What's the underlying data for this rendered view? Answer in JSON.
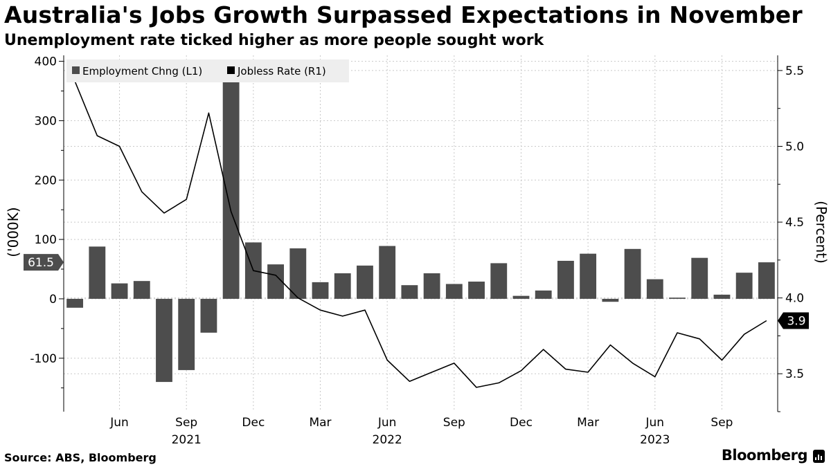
{
  "header": {
    "title": "Australia's Jobs Growth Surpassed Expectations in November",
    "subtitle": "Unemployment rate ticked higher as more people sought work"
  },
  "footer": {
    "source": "Source: ABS, Bloomberg",
    "brand": "Bloomberg"
  },
  "colors": {
    "bars": "#4d4d4d",
    "line": "#000000",
    "grid": "#c8c8c8",
    "legend_bg": "#eeeeee",
    "label_bar_bg": "#4d4d4d",
    "label_line_bg": "#000000"
  },
  "chart_data": {
    "type": "bar",
    "legend": {
      "placement": "top-left",
      "entries": [
        "Employment Chng (L1)",
        "Jobless Rate (R1)"
      ]
    },
    "grid": true,
    "left_axis": {
      "label": "('000K)",
      "range": [
        -190,
        410
      ],
      "ticks": [
        400,
        300,
        200,
        100,
        0,
        -100
      ]
    },
    "right_axis": {
      "label": "(Percent)",
      "range": [
        3.25,
        5.6
      ],
      "ticks": [
        "5.5",
        "5.0",
        "4.5",
        "4.0",
        "3.5"
      ]
    },
    "x_ticks": [
      {
        "label": "Jun",
        "index": 2
      },
      {
        "label": "Sep",
        "index": 5
      },
      {
        "label": "Dec",
        "index": 8
      },
      {
        "label": "Mar",
        "index": 11
      },
      {
        "label": "Jun",
        "index": 14
      },
      {
        "label": "Sep",
        "index": 17
      },
      {
        "label": "Dec",
        "index": 20
      },
      {
        "label": "Mar",
        "index": 23
      },
      {
        "label": "Jun",
        "index": 26
      },
      {
        "label": "Sep",
        "index": 29
      }
    ],
    "year_labels": [
      {
        "label": "2021",
        "index": 5
      },
      {
        "label": "2022",
        "index": 14
      },
      {
        "label": "2023",
        "index": 26
      }
    ],
    "categories": [
      "Apr 2021",
      "May 2021",
      "Jun 2021",
      "Jul 2021",
      "Aug 2021",
      "Sep 2021",
      "Oct 2021",
      "Nov 2021",
      "Dec 2021",
      "Jan 2022",
      "Feb 2022",
      "Mar 2022",
      "Apr 2022",
      "May 2022",
      "Jun 2022",
      "Jul 2022",
      "Aug 2022",
      "Sep 2022",
      "Oct 2022",
      "Nov 2022",
      "Dec 2022",
      "Jan 2023",
      "Feb 2023",
      "Mar 2023",
      "Apr 2023",
      "May 2023",
      "Jun 2023",
      "Jul 2023",
      "Aug 2023",
      "Sep 2023",
      "Oct 2023",
      "Nov 2023"
    ],
    "series": [
      {
        "name": "Employment Chng (L1)",
        "axis": "left",
        "kind": "bar",
        "values": [
          -15,
          88,
          26,
          30,
          -140,
          -120,
          -57,
          370,
          95,
          58,
          85,
          28,
          43,
          56,
          89,
          23,
          43,
          25,
          29,
          60,
          5,
          14,
          64,
          76,
          -5,
          84,
          33,
          2,
          69,
          7,
          44,
          61.5
        ]
      },
      {
        "name": "Jobless Rate (R1)",
        "axis": "right",
        "kind": "line",
        "values": [
          5.43,
          5.07,
          5.0,
          4.7,
          4.56,
          4.65,
          5.22,
          4.57,
          4.18,
          4.15,
          4.0,
          3.92,
          3.88,
          3.92,
          3.59,
          3.45,
          3.51,
          3.57,
          3.41,
          3.44,
          3.52,
          3.66,
          3.53,
          3.51,
          3.69,
          3.57,
          3.48,
          3.77,
          3.73,
          3.59,
          3.76,
          3.85
        ]
      }
    ],
    "last_value_labels": {
      "left": "61.5",
      "right": "3.9"
    }
  }
}
